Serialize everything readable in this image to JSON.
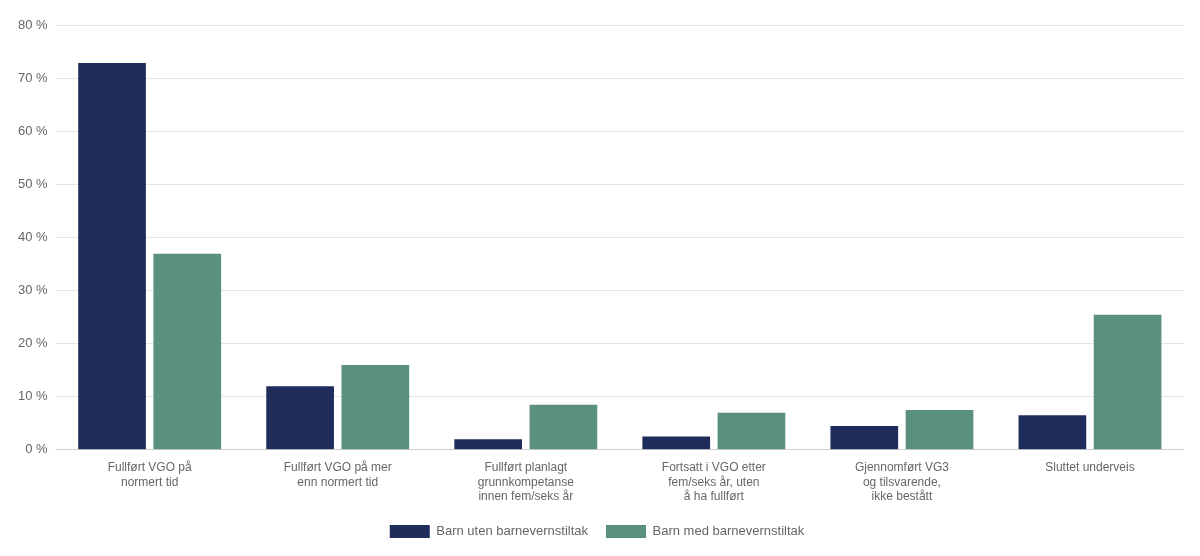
{
  "chart_data": {
    "type": "bar",
    "categories": [
      "Fullført VGO på\nnormert tid",
      "Fullført VGO på mer\nenn normert tid",
      "Fullført planlagt\ngrunnkompetanse\ninnen fem/seks år",
      "Fortsatt i VGO etter\nfem/seks år, uten\nå ha fullført",
      "Gjennomført VG3\nog tilsvarende,\nikke bestått",
      "Sluttet underveis"
    ],
    "series": [
      {
        "name": "Barn uten barnevernstiltak",
        "color": "#1f2d5c",
        "values": [
          73,
          12,
          2,
          2.5,
          4.5,
          6.5
        ]
      },
      {
        "name": "Barn med barnevernstiltak",
        "color": "#5a9080",
        "values": [
          37,
          16,
          8.5,
          7,
          7.5,
          25.5
        ]
      }
    ],
    "ylim": [
      0,
      80
    ],
    "yticks": [
      {
        "value": 0,
        "label": "0 %"
      },
      {
        "value": 10,
        "label": "10 %"
      },
      {
        "value": 20,
        "label": "20 %"
      },
      {
        "value": 30,
        "label": "30 %"
      },
      {
        "value": 40,
        "label": "40 %"
      },
      {
        "value": 50,
        "label": "50 %"
      },
      {
        "value": 60,
        "label": "60 %"
      },
      {
        "value": 70,
        "label": "70 %"
      },
      {
        "value": 80,
        "label": "80 %"
      }
    ],
    "grid": true,
    "legend": "bottom"
  }
}
